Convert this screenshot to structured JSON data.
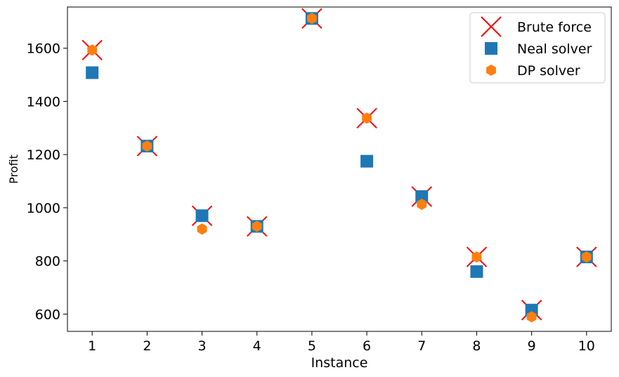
{
  "chart_data": {
    "type": "scatter",
    "title": "",
    "xlabel": "Instance",
    "ylabel": "Profit",
    "x": [
      1,
      2,
      3,
      4,
      5,
      6,
      7,
      8,
      9,
      10
    ],
    "xlim": [
      0.55,
      10.45
    ],
    "ylim": [
      535,
      1755
    ],
    "x_ticks": [
      1,
      2,
      3,
      4,
      5,
      6,
      7,
      8,
      9,
      10
    ],
    "y_ticks": [
      600,
      800,
      1000,
      1200,
      1400,
      1600
    ],
    "grid": false,
    "legend_position": "top-right",
    "series": [
      {
        "name": "Brute force",
        "marker": "x",
        "color": "#ff0000",
        "values": [
          1593,
          1232,
          970,
          930,
          1712,
          1337,
          1042,
          815,
          615,
          815
        ]
      },
      {
        "name": "Neal solver",
        "marker": "square",
        "color": "#1f77b4",
        "values": [
          1508,
          1232,
          970,
          930,
          1712,
          1175,
          1042,
          760,
          615,
          815
        ]
      },
      {
        "name": "DP solver",
        "marker": "hexagon",
        "color": "#ff7f0e",
        "values": [
          1593,
          1232,
          920,
          930,
          1712,
          1337,
          1013,
          815,
          590,
          815
        ]
      }
    ]
  }
}
